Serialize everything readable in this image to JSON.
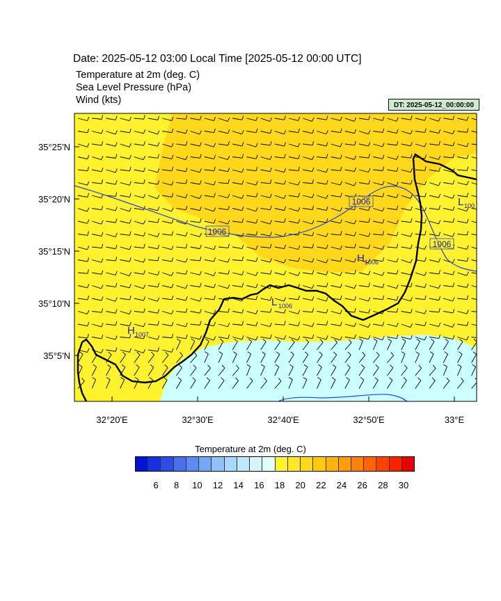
{
  "title": "Date: 2025-05-12  03:00 Local Time [2025-05-12  00:00 UTC]",
  "fields": [
    "Temperature at 2m   (deg. C)",
    "Sea Level Pressure   (hPa)",
    "Wind   (kts)"
  ],
  "dt_badge": "DT: 2025-05-12_00:00:00",
  "map": {
    "lat_labels": [
      "35°25'N",
      "35°20'N",
      "35°15'N",
      "35°10'N",
      "35°5'N"
    ],
    "lon_labels": [
      "32°20'E",
      "32°30'E",
      "32°40'E",
      "32°50'E",
      "33°E"
    ],
    "isobar_labels": [
      "1006",
      "1006",
      "1006"
    ],
    "pressure_centers": [
      {
        "type": "H",
        "value": "1007"
      },
      {
        "type": "L",
        "value": "1006"
      },
      {
        "type": "H",
        "value": "1006"
      },
      {
        "type": "L",
        "value": "100"
      }
    ],
    "colors": {
      "land_yellow": "#fff22e",
      "warm_yellow": "#ffd81c",
      "cool_cyan": "#ccffff",
      "isobar": "#2b45d0",
      "coast": "#000000"
    }
  },
  "colorbar": {
    "title": "Temperature at 2m  (deg. C)",
    "labels": [
      "6",
      "8",
      "10",
      "12",
      "14",
      "16",
      "18",
      "20",
      "22",
      "24",
      "26",
      "28",
      "30"
    ],
    "colors": [
      "#0014d2",
      "#1530e0",
      "#2c4ee8",
      "#4a70ef",
      "#5a8cf3",
      "#74a8f6",
      "#8ec2f9",
      "#a8d8fb",
      "#bee8fb",
      "#d4f6fb",
      "#e2fefe",
      "#fff22e",
      "#ffe828",
      "#ffd81c",
      "#ffc812",
      "#ffb40a",
      "#ff9e08",
      "#ff8206",
      "#ff6404",
      "#ff4202",
      "#ff2000",
      "#e80000"
    ]
  }
}
